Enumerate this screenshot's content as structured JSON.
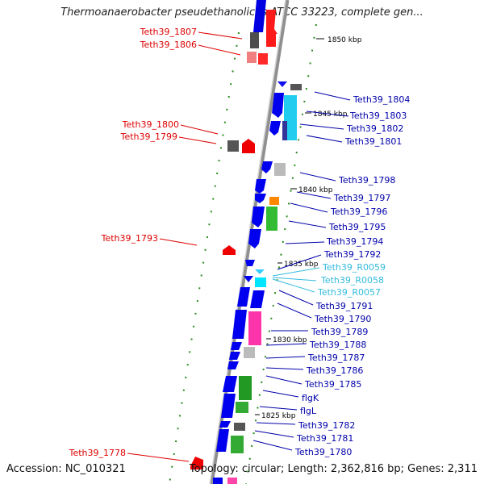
{
  "title": "Thermoanaerobacter pseudethanolicus ATCC 33223, complete gen...",
  "accession": "Accession: NC_010321",
  "summary": "Topology: circular; Length: 2,362,816 bp; Genes: 2,311",
  "ticks": [
    "1850 kbp",
    "1845 kbp",
    "1840 kbp",
    "1835 kbp",
    "1830 kbp",
    "1825 kbp"
  ],
  "left_labels": [
    "Teth39_1807",
    "Teth39_1806",
    "Teth39_1800",
    "Teth39_1799",
    "Teth39_1793",
    "Teth39_1778"
  ],
  "right_labels": [
    "Teth39_1804",
    "Teth39_1803",
    "Teth39_1802",
    "Teth39_1801",
    "Teth39_1798",
    "Teth39_1797",
    "Teth39_1796",
    "Teth39_1795",
    "Teth39_1794",
    "Teth39_1792",
    "Teth39_R0059",
    "Teth39_R0058",
    "Teth39_R0057",
    "Teth39_1791",
    "Teth39_1790",
    "Teth39_1789",
    "Teth39_1788",
    "Teth39_1787",
    "Teth39_1786",
    "Teth39_1785",
    "flgK",
    "flgL",
    "Teth39_1782",
    "Teth39_1781",
    "Teth39_1780"
  ],
  "colors": {
    "left_label": "#dd0000",
    "right_label": "#0000aa",
    "rna_label": "#33bbdd",
    "backbone": "#9a9a9a",
    "gc_dot": "#2a8a1f"
  }
}
